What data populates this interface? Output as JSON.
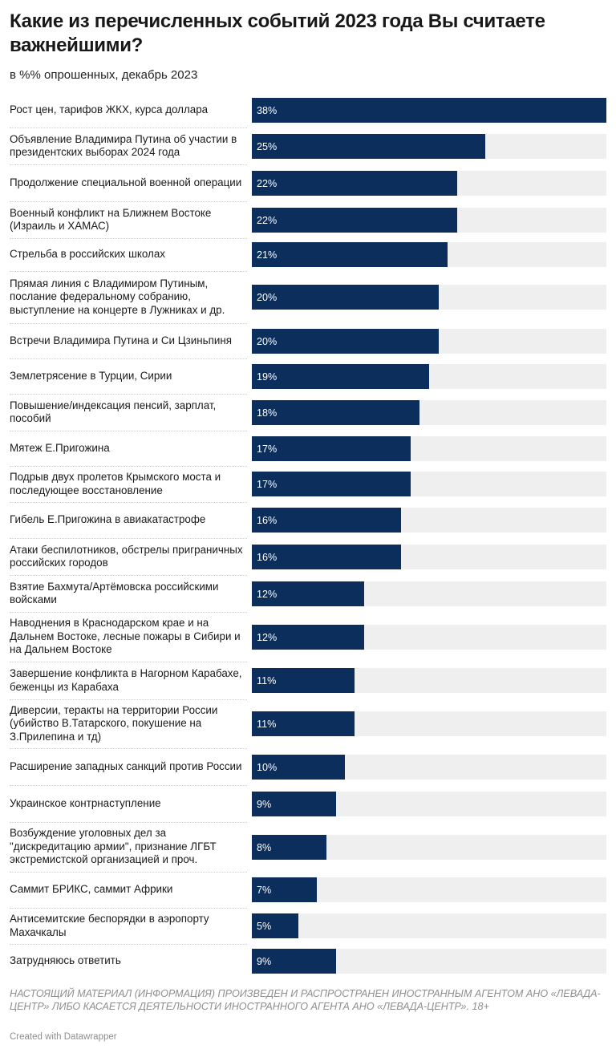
{
  "chart_data": {
    "type": "bar",
    "orientation": "horizontal",
    "title": "Какие из перечисленных событий 2023 года Вы считаете важнейшими?",
    "subtitle": "в %% опрошенных, декабрь 2023",
    "value_suffix": "%",
    "xlim": [
      0,
      38
    ],
    "categories": [
      "Рост цен, тарифов ЖКХ, курса доллара",
      "Объявление Владимира Путина об участии в президентских выборах 2024 года",
      "Продолжение специальной военной операции",
      "Военный конфликт на Ближнем Востоке (Израиль и ХАМАС)",
      "Стрельба в российских школах",
      "Прямая линия с Владимиром Путиным, послание федеральному собранию, выступление на концерте в Лужниках и др.",
      "Встречи Владимира Путина и Си Цзиньпиня",
      "Землетрясение в Турции, Сирии",
      "Повышение/индексация пенсий, зарплат, пособий",
      "Мятеж Е.Пригожина",
      "Подрыв двух пролетов Крымского моста и последующее восстановление",
      "Гибель Е.Пригожина в авиакатастрофе",
      "Атаки беспилотников, обстрелы приграничных российских городов",
      "Взятие Бахмута/Артёмовска российскими войсками",
      "Наводнения в Краснодарском крае и на Дальнем Востоке, лесные пожары в Сибири и на Дальнем Востоке",
      "Завершение конфликта в Нагорном Карабахе, беженцы из Карабаха",
      "Диверсии, теракты на территории России (убийство В.Татарского, покушение на З.Прилепина и тд)",
      "Расширение западных санкций против России",
      "Украинское контрнаступление",
      "Возбуждение уголовных дел за \"дискредитацию армии\", признание ЛГБТ экстремистской организацией и проч.",
      "Саммит БРИКС, саммит Африки",
      "Антисемитские беспорядки в аэропорту Махачкалы",
      "Затрудняюсь ответить"
    ],
    "values": [
      38,
      25,
      22,
      22,
      21,
      20,
      20,
      19,
      18,
      17,
      17,
      16,
      16,
      12,
      12,
      11,
      11,
      10,
      9,
      8,
      7,
      5,
      9
    ],
    "value_labels": [
      "38%",
      "25%",
      "22%",
      "22%",
      "21%",
      "20%",
      "20%",
      "19%",
      "18%",
      "17%",
      "17%",
      "16%",
      "16%",
      "12%",
      "12%",
      "11%",
      "11%",
      "10%",
      "9%",
      "8%",
      "7%",
      "5%",
      "9%"
    ],
    "colors": {
      "bar": "#0b2e5c",
      "track": "#efefef",
      "value_text": "#ffffff"
    }
  },
  "notes": "НАСТОЯЩИЙ МАТЕРИАЛ (ИНФОРМАЦИЯ) ПРОИЗВЕДЕН И РАСПРОСТРАНЕН ИНОСТРАННЫМ АГЕНТОМ АНО «ЛЕВАДА-ЦЕНТР» ЛИБО КАСАЕТСЯ ДЕЯТЕЛЬНОСТИ ИНОСТРАННОГО АГЕНТА АНО «ЛЕВАДА-ЦЕНТР». 18+",
  "credit": "Created with Datawrapper"
}
